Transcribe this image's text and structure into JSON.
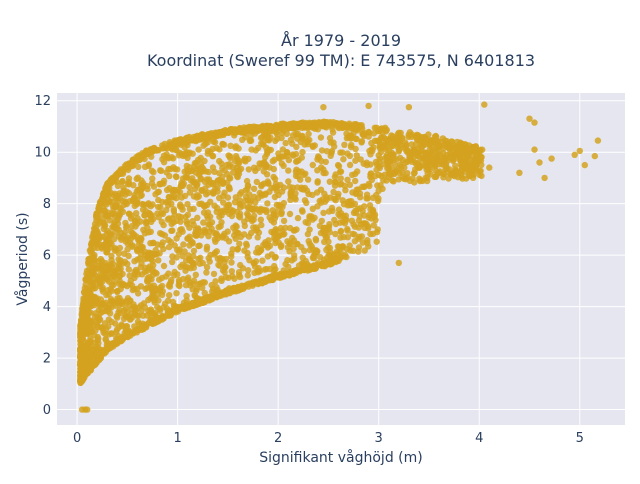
{
  "chart_data": {
    "type": "scatter",
    "title": {
      "line1": "År 1979 - 2019",
      "line2": "Koordinat (Sweref 99 TM): E 743575, N 6401813"
    },
    "xlabel": "Signifikant våghöjd (m)",
    "ylabel": "Vågperiod (s)",
    "xlim": [
      -0.2,
      5.45
    ],
    "ylim": [
      -0.6,
      12.3
    ],
    "x_ticks": [
      0,
      1,
      2,
      3,
      4,
      5
    ],
    "y_ticks": [
      0,
      2,
      4,
      6,
      8,
      10,
      12
    ],
    "x_tick_labels": [
      "0",
      "1",
      "2",
      "3",
      "4",
      "5"
    ],
    "y_tick_labels": [
      "0",
      "2",
      "4",
      "6",
      "8",
      "10",
      "12"
    ],
    "grid": true,
    "legend": "none",
    "marker_color": "#d4a21f",
    "plot_background": "#e5e6ef",
    "point_density": "very dense cloud (estimated distribution)",
    "envelope": {
      "lower_edge": [
        [
          0.03,
          1.0
        ],
        [
          0.15,
          1.6
        ],
        [
          0.3,
          2.3
        ],
        [
          0.5,
          2.8
        ],
        [
          0.8,
          3.4
        ],
        [
          1.0,
          3.8
        ],
        [
          1.5,
          4.5
        ],
        [
          2.0,
          5.1
        ],
        [
          2.5,
          5.6
        ],
        [
          3.0,
          6.4
        ],
        [
          3.5,
          7.3
        ],
        [
          4.0,
          8.0
        ]
      ],
      "upper_edge": [
        [
          0.03,
          3.2
        ],
        [
          0.1,
          5.6
        ],
        [
          0.2,
          7.8
        ],
        [
          0.3,
          8.8
        ],
        [
          0.5,
          9.6
        ],
        [
          0.7,
          10.1
        ],
        [
          1.0,
          10.5
        ],
        [
          1.5,
          10.9
        ],
        [
          2.0,
          11.1
        ],
        [
          2.5,
          11.2
        ],
        [
          3.0,
          11.0
        ],
        [
          3.5,
          10.7
        ],
        [
          4.0,
          10.2
        ]
      ]
    },
    "notable_points": [
      {
        "x": 0.05,
        "y": 0.0
      },
      {
        "x": 0.08,
        "y": 0.0
      },
      {
        "x": 0.1,
        "y": 0.0
      },
      {
        "x": 2.45,
        "y": 11.75
      },
      {
        "x": 2.9,
        "y": 11.8
      },
      {
        "x": 3.3,
        "y": 11.75
      },
      {
        "x": 4.05,
        "y": 11.85
      },
      {
        "x": 4.1,
        "y": 9.4
      },
      {
        "x": 4.5,
        "y": 11.3
      },
      {
        "x": 4.55,
        "y": 11.15
      },
      {
        "x": 4.55,
        "y": 10.1
      },
      {
        "x": 4.6,
        "y": 9.6
      },
      {
        "x": 4.65,
        "y": 9.0
      },
      {
        "x": 4.72,
        "y": 9.75
      },
      {
        "x": 4.95,
        "y": 9.9
      },
      {
        "x": 5.05,
        "y": 9.5
      },
      {
        "x": 5.15,
        "y": 9.85
      },
      {
        "x": 5.18,
        "y": 10.45
      },
      {
        "x": 5.0,
        "y": 10.05
      },
      {
        "x": 4.4,
        "y": 9.2
      },
      {
        "x": 3.2,
        "y": 5.7
      },
      {
        "x": 2.6,
        "y": 6.1
      }
    ]
  }
}
